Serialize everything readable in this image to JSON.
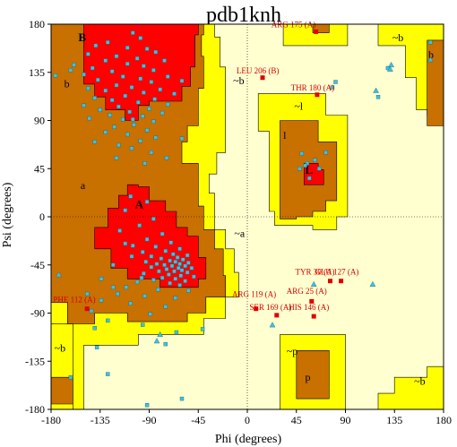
{
  "chart_data": {
    "type": "scatter",
    "title": "pdb1knh",
    "xlabel": "Phi (degrees)",
    "ylabel": "Psi (degrees)",
    "xlim": [
      -180,
      180
    ],
    "ylim": [
      -180,
      180
    ],
    "x_ticks": [
      "-180",
      "-135",
      "-90",
      "-45",
      "0",
      "45",
      "90",
      "135",
      "180"
    ],
    "y_ticks": [
      "180",
      "135",
      "90",
      "45",
      "0",
      "-45",
      "-90",
      "-135",
      "-180"
    ],
    "grid": false,
    "zero_lines": true,
    "colors": {
      "core": "#ff0000",
      "allowed": "#c87000",
      "generous": "#ffff00",
      "generous_light": "#f0f080",
      "disallowed": "#ffffd0",
      "residue_point": "#40c0e0",
      "outlier_point": "#e00000",
      "outlier_label": "#d40000"
    },
    "region_labels": [
      {
        "text": "B",
        "phi": -155,
        "psi": 164,
        "bold": true
      },
      {
        "text": "b",
        "phi": -168,
        "psi": 121,
        "bold": false
      },
      {
        "text": "A",
        "phi": -103,
        "psi": 8,
        "bold": true
      },
      {
        "text": "a",
        "phi": -153,
        "psi": 26,
        "bold": false
      },
      {
        "text": "L",
        "phi": 53,
        "psi": 40,
        "bold": true
      },
      {
        "text": "l",
        "phi": 33,
        "psi": 73,
        "bold": false
      },
      {
        "text": "~b",
        "phi": -13,
        "psi": 124,
        "bold": false
      },
      {
        "text": "~b",
        "phi": 133,
        "psi": 164,
        "bold": false
      },
      {
        "text": "b",
        "phi": 166,
        "psi": 148,
        "bold": false
      },
      {
        "text": "~l",
        "phi": 43,
        "psi": 100,
        "bold": false
      },
      {
        "text": "~a",
        "phi": -12,
        "psi": -19,
        "bold": false
      },
      {
        "text": "~b",
        "phi": -177,
        "psi": -126,
        "bold": false
      },
      {
        "text": "~b",
        "phi": 153,
        "psi": -157,
        "bold": false
      },
      {
        "text": "~p",
        "phi": 36,
        "psi": -129,
        "bold": false
      },
      {
        "text": "p",
        "phi": 53,
        "psi": -153,
        "bold": false
      }
    ],
    "residues": [
      [
        -105,
        172
      ],
      [
        -98,
        167
      ],
      [
        -128,
        163
      ],
      [
        -139,
        160
      ],
      [
        -110,
        158
      ],
      [
        -92,
        157
      ],
      [
        -84,
        154
      ],
      [
        -146,
        152
      ],
      [
        -120,
        150
      ],
      [
        -101,
        148
      ],
      [
        -130,
        146
      ],
      [
        -76,
        146
      ],
      [
        -110,
        143
      ],
      [
        -159,
        142
      ],
      [
        -95,
        141
      ],
      [
        -142,
        139
      ],
      [
        -86,
        137
      ],
      [
        -124,
        136
      ],
      [
        -150,
        133
      ],
      [
        -114,
        131
      ],
      [
        -73,
        131
      ],
      [
        -98,
        129
      ],
      [
        -137,
        128
      ],
      [
        -60,
        127
      ],
      [
        -88,
        126
      ],
      [
        -120,
        123
      ],
      [
        -106,
        121
      ],
      [
        -146,
        120
      ],
      [
        -80,
        119
      ],
      [
        -130,
        118
      ],
      [
        -95,
        116
      ],
      [
        -67,
        115
      ],
      [
        -112,
        113
      ],
      [
        -140,
        111
      ],
      [
        -85,
        110
      ],
      [
        -124,
        109
      ],
      [
        -100,
        107
      ],
      [
        -73,
        105
      ],
      [
        -150,
        104
      ],
      [
        -118,
        103
      ],
      [
        -90,
        101
      ],
      [
        -135,
        100
      ],
      [
        -108,
        98
      ],
      [
        -78,
        97
      ],
      [
        -126,
        95
      ],
      [
        -96,
        94
      ],
      [
        -145,
        92
      ],
      [
        -114,
        91
      ],
      [
        -86,
        89
      ],
      [
        -104,
        86
      ],
      [
        -122,
        84
      ],
      [
        -92,
        81
      ],
      [
        -130,
        79
      ],
      [
        -110,
        77
      ],
      [
        -84,
        74
      ],
      [
        -98,
        71
      ],
      [
        -118,
        67
      ],
      [
        -106,
        64
      ],
      [
        -88,
        60
      ],
      [
        -120,
        55
      ],
      [
        -94,
        50
      ],
      [
        -60,
        73
      ],
      [
        -74,
        55
      ],
      [
        -162,
        137
      ],
      [
        -107,
        19
      ],
      [
        -92,
        14
      ],
      [
        -112,
        6
      ],
      [
        -86,
        -2
      ],
      [
        -99,
        -8
      ],
      [
        -117,
        -13
      ],
      [
        -78,
        -16
      ],
      [
        -92,
        -21
      ],
      [
        -70,
        -24
      ],
      [
        -105,
        -27
      ],
      [
        -84,
        -28
      ],
      [
        -62,
        -30
      ],
      [
        -75,
        -32
      ],
      [
        -96,
        -33
      ],
      [
        -68,
        -35
      ],
      [
        -55,
        -36
      ],
      [
        -88,
        -37
      ],
      [
        -64,
        -38
      ],
      [
        -79,
        -39
      ],
      [
        -59,
        -40
      ],
      [
        -71,
        -41
      ],
      [
        -93,
        -42
      ],
      [
        -66,
        -42
      ],
      [
        -54,
        -43
      ],
      [
        -83,
        -44
      ],
      [
        -62,
        -44
      ],
      [
        -76,
        -45
      ],
      [
        -57,
        -46
      ],
      [
        -69,
        -46
      ],
      [
        -88,
        -47
      ],
      [
        -63,
        -48
      ],
      [
        -51,
        -48
      ],
      [
        -74,
        -49
      ],
      [
        -60,
        -50
      ],
      [
        -81,
        -51
      ],
      [
        -67,
        -51
      ],
      [
        -55,
        -52
      ],
      [
        -95,
        -53
      ],
      [
        -72,
        -54
      ],
      [
        -61,
        -55
      ],
      [
        -49,
        -56
      ],
      [
        -78,
        -57
      ],
      [
        -66,
        -58
      ],
      [
        -86,
        -59
      ],
      [
        -57,
        -60
      ],
      [
        -101,
        -61
      ],
      [
        -71,
        -62
      ],
      [
        -62,
        -64
      ],
      [
        -111,
        -66
      ],
      [
        -82,
        -68
      ],
      [
        -54,
        -69
      ],
      [
        -119,
        -72
      ],
      [
        -94,
        -74
      ],
      [
        -66,
        -76
      ],
      [
        -134,
        -78
      ],
      [
        -107,
        -81
      ],
      [
        -75,
        -84
      ],
      [
        -143,
        -88
      ],
      [
        -89,
        -91
      ],
      [
        -128,
        -97
      ],
      [
        -96,
        -101
      ],
      [
        -140,
        -104
      ],
      [
        -65,
        -108
      ],
      [
        -128,
        -147
      ],
      [
        -92,
        -176
      ],
      [
        -162,
        -150
      ],
      [
        -112,
        -25
      ],
      [
        -123,
        -45
      ],
      [
        -134,
        -58
      ],
      [
        -147,
        -72
      ],
      [
        -97,
        -57
      ],
      [
        -106,
        -37
      ],
      [
        50,
        59
      ],
      [
        55,
        50
      ],
      [
        62,
        53
      ],
      [
        48,
        45
      ],
      [
        57,
        36
      ],
      [
        66,
        45
      ],
      [
        72,
        60
      ],
      [
        81,
        126
      ],
      [
        78,
        121
      ],
      [
        120,
        112
      ],
      [
        129,
        139
      ],
      [
        168,
        163
      ],
      [
        -41,
        -105
      ],
      [
        -75,
        -119
      ],
      [
        -60,
        -170
      ],
      [
        -123,
        -66
      ],
      [
        53,
        48
      ],
      [
        -138,
        -122
      ],
      [
        -176,
        132
      ],
      [
        -105,
        91
      ],
      [
        -140,
        70
      ]
    ],
    "triangles": [
      [
        132,
        142
      ],
      [
        131,
        138
      ],
      [
        168,
        147
      ],
      [
        118,
        118
      ],
      [
        115,
        -63
      ],
      [
        61,
        -63
      ],
      [
        -173,
        -54
      ],
      [
        -83,
        -116
      ],
      [
        23,
        -101
      ],
      [
        -80,
        -110
      ]
    ],
    "outliers": [
      {
        "label": "ARG 175 (A)",
        "phi": 63,
        "psi": 173,
        "label_phi": 22,
        "label_psi": 177
      },
      {
        "label": "LEU 206 (B)",
        "phi": 14,
        "psi": 130,
        "label_phi": -10,
        "label_psi": 134
      },
      {
        "label": "THR 180 (A)",
        "phi": 64,
        "psi": 114,
        "label_phi": 40,
        "label_psi": 118
      },
      {
        "label": "TYR 30 (A)",
        "phi": 76,
        "psi": -60,
        "label_phi": 44,
        "label_psi": -54
      },
      {
        "label": "GLU 127 (A)",
        "phi": 86,
        "psi": -60,
        "label_phi": 62,
        "label_psi": -54
      },
      {
        "label": "ARG 25 (A)",
        "phi": 59,
        "psi": -79,
        "label_phi": 36,
        "label_psi": -72
      },
      {
        "label": "ARG 119 (A)",
        "phi": 8,
        "psi": -86,
        "label_phi": -14,
        "label_psi": -75
      },
      {
        "label": "SER 169 (A)",
        "phi": 27,
        "psi": -92,
        "label_phi": 2,
        "label_psi": -87
      },
      {
        "label": "HIS 146 (A)",
        "phi": 61,
        "psi": -93,
        "label_phi": 38,
        "label_psi": -87
      },
      {
        "label": "PHE 112 (A)",
        "phi": -147,
        "psi": -86,
        "label_phi": -178,
        "label_psi": -80
      }
    ]
  }
}
